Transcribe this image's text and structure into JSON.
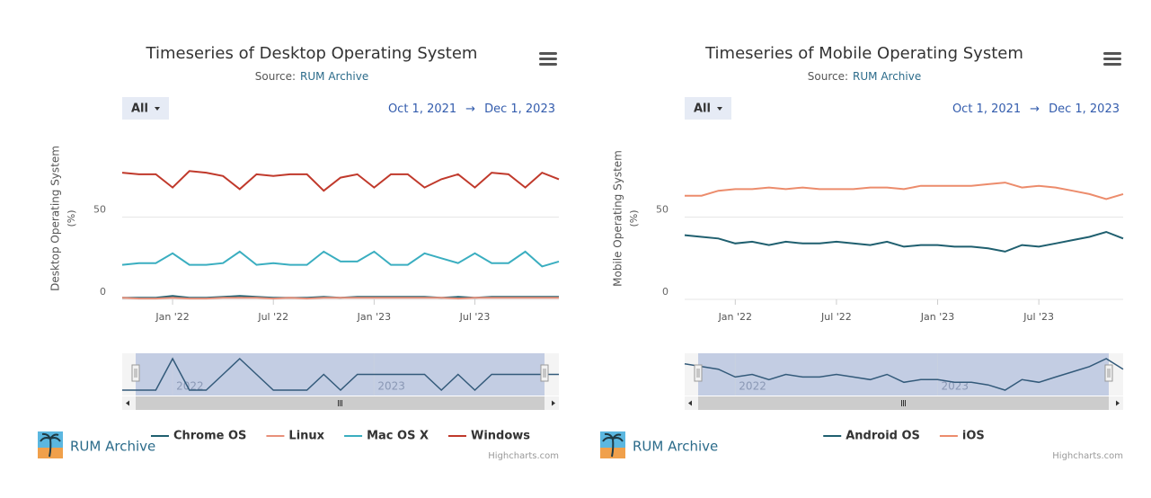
{
  "chart_data": [
    {
      "type": "line",
      "title": "Timeseries of Desktop Operating System",
      "subtitle": {
        "text": "Source:",
        "link": "RUM Archive"
      },
      "range_button": "All",
      "range_from": "Oct 1, 2021",
      "range_separator": "→",
      "range_to": "Dec 1, 2023",
      "y_label": "Desktop Operating System",
      "y_unit": "(%)",
      "x": [
        "2021-10",
        "2021-11",
        "2021-12",
        "2022-01",
        "2022-02",
        "2022-03",
        "2022-04",
        "2022-05",
        "2022-06",
        "2022-07",
        "2022-08",
        "2022-09",
        "2022-10",
        "2022-11",
        "2022-12",
        "2023-01",
        "2023-02",
        "2023-03",
        "2023-04",
        "2023-05",
        "2023-06",
        "2023-07",
        "2023-08",
        "2023-09",
        "2023-10",
        "2023-11",
        "2023-12"
      ],
      "xlim": [
        "2021-10",
        "2023-12"
      ],
      "xticks": [
        {
          "value": "2022-01",
          "label": "Jan '22"
        },
        {
          "value": "2022-07",
          "label": "Jul '22"
        },
        {
          "value": "2023-01",
          "label": "Jan '23"
        },
        {
          "value": "2023-07",
          "label": "Jul '23"
        }
      ],
      "navigator_ticks": [
        {
          "value": "2022-01",
          "label": "2022"
        },
        {
          "value": "2023-01",
          "label": "2023"
        }
      ],
      "ylim": [
        0,
        100
      ],
      "yticks": [
        0,
        50
      ],
      "grid": true,
      "series": [
        {
          "name": "Chrome OS",
          "color": "#1f5f6f",
          "values": [
            1,
            1,
            1,
            2,
            1,
            1,
            1.5,
            2,
            1.5,
            1,
            1,
            1,
            1.5,
            1,
            1.5,
            1.5,
            1.5,
            1.5,
            1.5,
            1,
            1.5,
            1,
            1.5,
            1.5,
            1.5,
            1.5,
            1.5
          ]
        },
        {
          "name": "Linux",
          "color": "#e8907a",
          "values": [
            1,
            0.5,
            0.5,
            1,
            0.5,
            0.5,
            1,
            1,
            1,
            0.5,
            1,
            0.5,
            1,
            1,
            1,
            1,
            1,
            1,
            1,
            1,
            0.5,
            1,
            1,
            1,
            1,
            1,
            1
          ]
        },
        {
          "name": "Mac OS X",
          "color": "#3aaec0",
          "values": [
            21,
            22,
            22,
            28,
            21,
            21,
            22,
            29,
            21,
            22,
            21,
            21,
            29,
            23,
            23,
            29,
            21,
            21,
            28,
            25,
            22,
            28,
            22,
            22,
            29,
            20,
            23
          ]
        },
        {
          "name": "Windows",
          "color": "#c0392b",
          "values": [
            77,
            76,
            76,
            68,
            78,
            77,
            75,
            67,
            76,
            75,
            76,
            76,
            66,
            74,
            76,
            68,
            76,
            76,
            68,
            73,
            76,
            68,
            77,
            76,
            68,
            77,
            73
          ]
        }
      ],
      "logo_text": "RUM Archive",
      "credits": "Highcharts.com"
    },
    {
      "type": "line",
      "title": "Timeseries of Mobile Operating System",
      "subtitle": {
        "text": "Source:",
        "link": "RUM Archive"
      },
      "range_button": "All",
      "range_from": "Oct 1, 2021",
      "range_separator": "→",
      "range_to": "Dec 1, 2023",
      "y_label": "Mobile Operating System",
      "y_unit": "(%)",
      "x": [
        "2021-10",
        "2021-11",
        "2021-12",
        "2022-01",
        "2022-02",
        "2022-03",
        "2022-04",
        "2022-05",
        "2022-06",
        "2022-07",
        "2022-08",
        "2022-09",
        "2022-10",
        "2022-11",
        "2022-12",
        "2023-01",
        "2023-02",
        "2023-03",
        "2023-04",
        "2023-05",
        "2023-06",
        "2023-07",
        "2023-08",
        "2023-09",
        "2023-10",
        "2023-11",
        "2023-12"
      ],
      "xlim": [
        "2021-10",
        "2023-12"
      ],
      "xticks": [
        {
          "value": "2022-01",
          "label": "Jan '22"
        },
        {
          "value": "2022-07",
          "label": "Jul '22"
        },
        {
          "value": "2023-01",
          "label": "Jan '23"
        },
        {
          "value": "2023-07",
          "label": "Jul '23"
        }
      ],
      "navigator_ticks": [
        {
          "value": "2022-01",
          "label": "2022"
        },
        {
          "value": "2023-01",
          "label": "2023"
        }
      ],
      "ylim": [
        0,
        100
      ],
      "yticks": [
        0,
        50
      ],
      "grid": true,
      "series": [
        {
          "name": "Android OS",
          "color": "#1f5f6f",
          "values": [
            39,
            38,
            37,
            34,
            35,
            33,
            35,
            34,
            34,
            35,
            34,
            33,
            35,
            32,
            33,
            33,
            32,
            32,
            31,
            29,
            33,
            32,
            34,
            36,
            38,
            41,
            37
          ]
        },
        {
          "name": "iOS",
          "color": "#ec8c6c",
          "values": [
            63,
            63,
            66,
            67,
            67,
            68,
            67,
            68,
            67,
            67,
            67,
            68,
            68,
            67,
            69,
            69,
            69,
            69,
            70,
            71,
            68,
            69,
            68,
            66,
            64,
            61,
            64
          ]
        }
      ],
      "logo_text": "RUM Archive",
      "credits": "Highcharts.com"
    }
  ]
}
